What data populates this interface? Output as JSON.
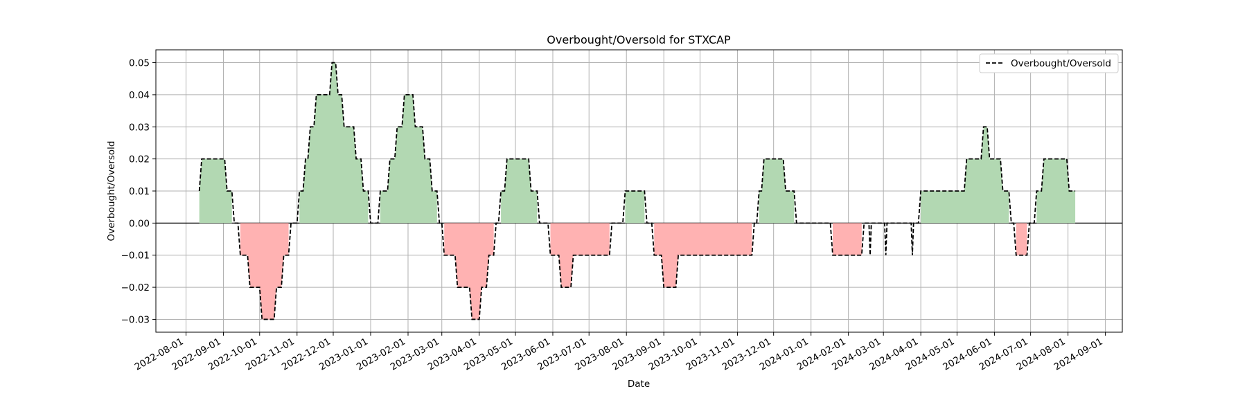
{
  "chart_data": {
    "type": "area",
    "title": "Overbought/Oversold for STXCAP",
    "xlabel": "Date",
    "ylabel": "Overbought/Oversold",
    "xlim": [
      "2022-07-07",
      "2024-09-15"
    ],
    "ylim": [
      -0.034,
      0.054
    ],
    "xticks": [
      "2022-08-01",
      "2022-09-01",
      "2022-10-01",
      "2022-11-01",
      "2022-12-01",
      "2023-01-01",
      "2023-02-01",
      "2023-03-01",
      "2023-04-01",
      "2023-05-01",
      "2023-06-01",
      "2023-07-01",
      "2023-08-01",
      "2023-09-01",
      "2023-10-01",
      "2023-11-01",
      "2023-12-01",
      "2024-01-01",
      "2024-02-01",
      "2024-03-01",
      "2024-04-01",
      "2024-05-01",
      "2024-06-01",
      "2024-07-01",
      "2024-08-01",
      "2024-09-01"
    ],
    "yticks": [
      "0.05",
      "0.04",
      "0.03",
      "0.02",
      "0.01",
      "0.00",
      "−0.01",
      "−0.02",
      "−0.03"
    ],
    "ytick_values": [
      0.05,
      0.04,
      0.03,
      0.02,
      0.01,
      0.0,
      -0.01,
      -0.02,
      -0.03
    ],
    "grid": true,
    "legend": {
      "position": "top-right",
      "entries": [
        "Overbought/Oversold"
      ]
    },
    "colors": {
      "positive_fill": "#b2d8b2",
      "negative_fill": "#ffb2b2",
      "line": "#000000"
    },
    "series": [
      {
        "name": "Overbought/Oversold",
        "style": "dashed-step",
        "points": [
          [
            "2022-08-12",
            0.01
          ],
          [
            "2022-08-14",
            0.02
          ],
          [
            "2022-09-02",
            0.02
          ],
          [
            "2022-09-04",
            0.01
          ],
          [
            "2022-09-08",
            0.01
          ],
          [
            "2022-09-10",
            0.0
          ],
          [
            "2022-09-13",
            0.0
          ],
          [
            "2022-09-15",
            -0.01
          ],
          [
            "2022-09-21",
            -0.01
          ],
          [
            "2022-09-23",
            -0.02
          ],
          [
            "2022-10-01",
            -0.02
          ],
          [
            "2022-10-03",
            -0.03
          ],
          [
            "2022-10-13",
            -0.03
          ],
          [
            "2022-10-15",
            -0.02
          ],
          [
            "2022-10-19",
            -0.02
          ],
          [
            "2022-10-21",
            -0.01
          ],
          [
            "2022-10-25",
            -0.01
          ],
          [
            "2022-10-27",
            0.0
          ],
          [
            "2022-11-01",
            0.0
          ],
          [
            "2022-11-03",
            0.01
          ],
          [
            "2022-11-06",
            0.01
          ],
          [
            "2022-11-08",
            0.02
          ],
          [
            "2022-11-10",
            0.02
          ],
          [
            "2022-11-12",
            0.03
          ],
          [
            "2022-11-15",
            0.03
          ],
          [
            "2022-11-17",
            0.04
          ],
          [
            "2022-11-28",
            0.04
          ],
          [
            "2022-11-30",
            0.05
          ],
          [
            "2022-12-03",
            0.05
          ],
          [
            "2022-12-05",
            0.04
          ],
          [
            "2022-12-08",
            0.04
          ],
          [
            "2022-12-10",
            0.03
          ],
          [
            "2022-12-18",
            0.03
          ],
          [
            "2022-12-20",
            0.02
          ],
          [
            "2022-12-24",
            0.02
          ],
          [
            "2022-12-26",
            0.01
          ],
          [
            "2022-12-30",
            0.01
          ],
          [
            "2023-01-01",
            0.0
          ],
          [
            "2023-01-07",
            0.0
          ],
          [
            "2023-01-09",
            0.01
          ],
          [
            "2023-01-15",
            0.01
          ],
          [
            "2023-01-17",
            0.02
          ],
          [
            "2023-01-21",
            0.02
          ],
          [
            "2023-01-23",
            0.03
          ],
          [
            "2023-01-27",
            0.03
          ],
          [
            "2023-01-29",
            0.04
          ],
          [
            "2023-02-05",
            0.04
          ],
          [
            "2023-02-07",
            0.03
          ],
          [
            "2023-02-13",
            0.03
          ],
          [
            "2023-02-15",
            0.02
          ],
          [
            "2023-02-19",
            0.02
          ],
          [
            "2023-02-21",
            0.01
          ],
          [
            "2023-02-25",
            0.01
          ],
          [
            "2023-02-27",
            0.0
          ],
          [
            "2023-03-01",
            0.0
          ],
          [
            "2023-03-03",
            -0.01
          ],
          [
            "2023-03-12",
            -0.01
          ],
          [
            "2023-03-14",
            -0.02
          ],
          [
            "2023-03-24",
            -0.02
          ],
          [
            "2023-03-26",
            -0.03
          ],
          [
            "2023-04-01",
            -0.03
          ],
          [
            "2023-04-03",
            -0.02
          ],
          [
            "2023-04-07",
            -0.02
          ],
          [
            "2023-04-09",
            -0.01
          ],
          [
            "2023-04-13",
            -0.01
          ],
          [
            "2023-04-15",
            0.0
          ],
          [
            "2023-04-17",
            0.0
          ],
          [
            "2023-04-19",
            0.01
          ],
          [
            "2023-04-22",
            0.01
          ],
          [
            "2023-04-24",
            0.02
          ],
          [
            "2023-05-12",
            0.02
          ],
          [
            "2023-05-14",
            0.01
          ],
          [
            "2023-05-19",
            0.01
          ],
          [
            "2023-05-21",
            0.0
          ],
          [
            "2023-05-28",
            0.0
          ],
          [
            "2023-05-30",
            -0.01
          ],
          [
            "2023-06-06",
            -0.01
          ],
          [
            "2023-06-08",
            -0.02
          ],
          [
            "2023-06-16",
            -0.02
          ],
          [
            "2023-06-18",
            -0.01
          ],
          [
            "2023-07-18",
            -0.01
          ],
          [
            "2023-07-20",
            0.0
          ],
          [
            "2023-07-29",
            0.0
          ],
          [
            "2023-07-31",
            0.01
          ],
          [
            "2023-08-16",
            0.01
          ],
          [
            "2023-08-18",
            0.0
          ],
          [
            "2023-08-22",
            0.0
          ],
          [
            "2023-08-24",
            -0.01
          ],
          [
            "2023-08-30",
            -0.01
          ],
          [
            "2023-09-01",
            -0.02
          ],
          [
            "2023-09-11",
            -0.02
          ],
          [
            "2023-09-13",
            -0.01
          ],
          [
            "2023-11-13",
            -0.01
          ],
          [
            "2023-11-15",
            0.0
          ],
          [
            "2023-11-17",
            0.0
          ],
          [
            "2023-11-19",
            0.01
          ],
          [
            "2023-11-21",
            0.01
          ],
          [
            "2023-11-23",
            0.02
          ],
          [
            "2023-12-09",
            0.02
          ],
          [
            "2023-12-11",
            0.01
          ],
          [
            "2023-12-18",
            0.01
          ],
          [
            "2023-12-20",
            0.0
          ],
          [
            "2024-01-17",
            0.0
          ],
          [
            "2024-01-19",
            -0.01
          ],
          [
            "2024-02-12",
            -0.01
          ],
          [
            "2024-02-14",
            0.0
          ],
          [
            "2024-02-18",
            0.0
          ],
          [
            "2024-02-19",
            -0.01
          ],
          [
            "2024-02-20",
            0.0
          ],
          [
            "2024-03-02",
            0.0
          ],
          [
            "2024-03-03",
            -0.01
          ],
          [
            "2024-03-04",
            0.0
          ],
          [
            "2024-03-24",
            0.0
          ],
          [
            "2024-03-25",
            -0.01
          ],
          [
            "2024-03-26",
            0.0
          ],
          [
            "2024-03-30",
            0.0
          ],
          [
            "2024-04-01",
            0.01
          ],
          [
            "2024-05-07",
            0.01
          ],
          [
            "2024-05-09",
            0.02
          ],
          [
            "2024-05-21",
            0.02
          ],
          [
            "2024-05-23",
            0.03
          ],
          [
            "2024-05-26",
            0.03
          ],
          [
            "2024-05-28",
            0.02
          ],
          [
            "2024-06-06",
            0.02
          ],
          [
            "2024-06-08",
            0.01
          ],
          [
            "2024-06-13",
            0.01
          ],
          [
            "2024-06-15",
            0.0
          ],
          [
            "2024-06-17",
            0.0
          ],
          [
            "2024-06-19",
            -0.01
          ],
          [
            "2024-06-28",
            -0.01
          ],
          [
            "2024-06-30",
            0.0
          ],
          [
            "2024-07-04",
            0.0
          ],
          [
            "2024-07-06",
            0.01
          ],
          [
            "2024-07-10",
            0.01
          ],
          [
            "2024-07-12",
            0.02
          ],
          [
            "2024-07-31",
            0.02
          ],
          [
            "2024-08-02",
            0.01
          ],
          [
            "2024-08-07",
            0.01
          ]
        ]
      }
    ]
  }
}
